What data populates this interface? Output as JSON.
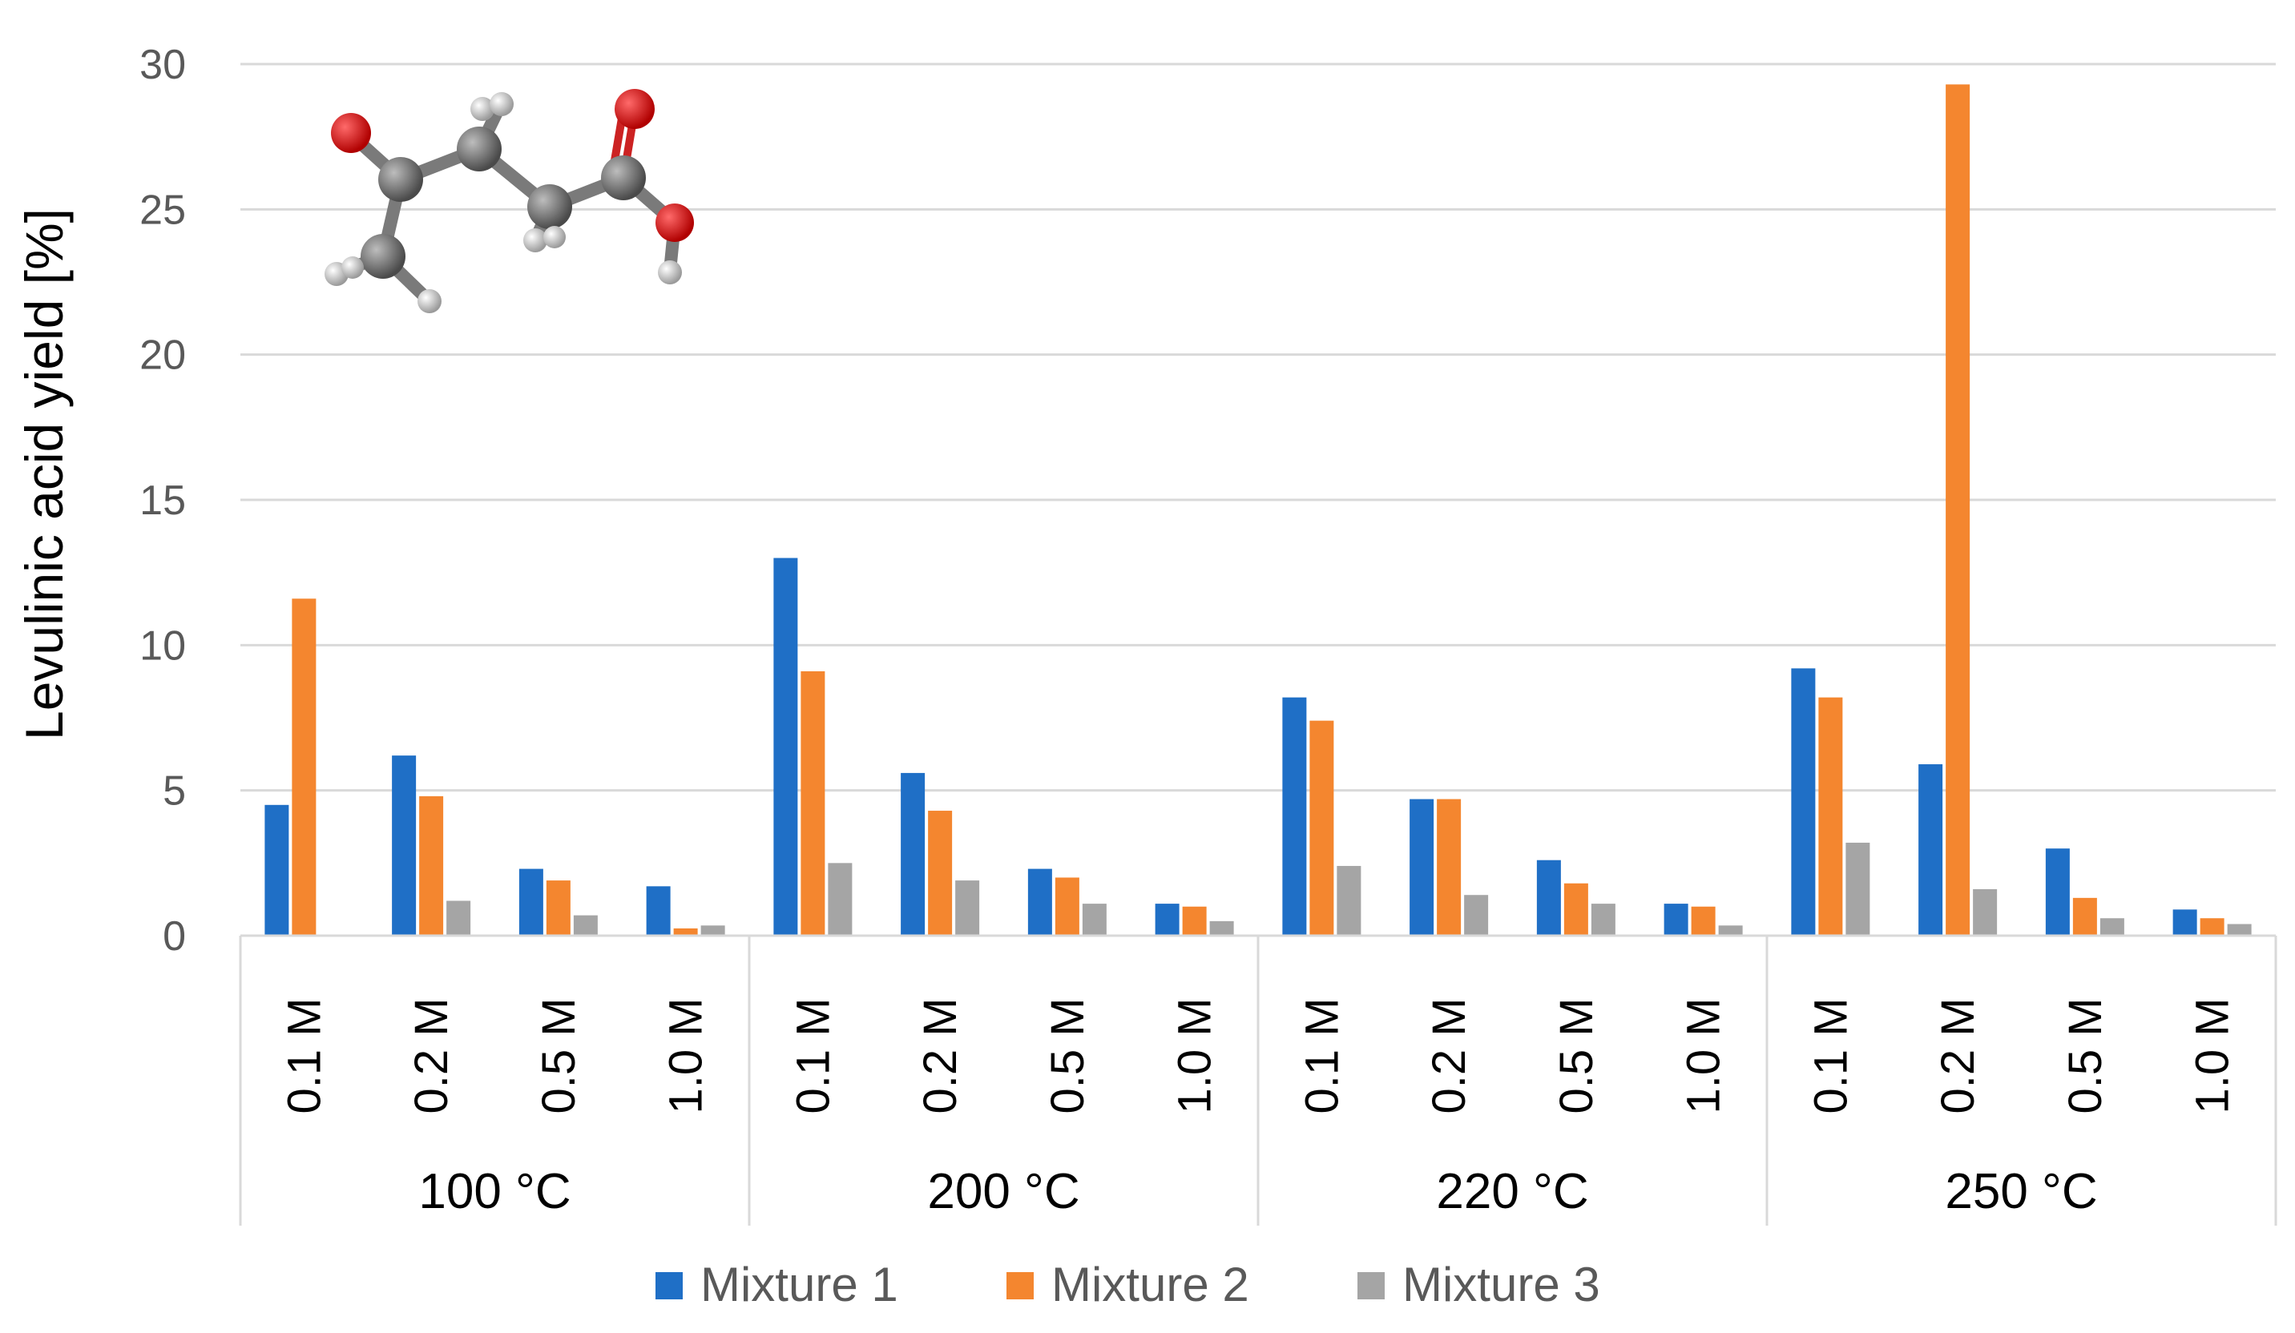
{
  "chart_data": {
    "type": "bar",
    "title": "",
    "ylabel": "Levulinic acid yield [%]",
    "xlabel": "",
    "ylim": [
      0,
      30
    ],
    "yticks": [
      0,
      5,
      10,
      15,
      20,
      25,
      30
    ],
    "grid": true,
    "legend_position": "bottom",
    "groups": [
      {
        "label": "100 °C",
        "categories": [
          "0.1 M",
          "0.2 M",
          "0.5 M",
          "1.0 M"
        ]
      },
      {
        "label": "200 °C",
        "categories": [
          "0.1 M",
          "0.2 M",
          "0.5 M",
          "1.0 M"
        ]
      },
      {
        "label": "220 °C",
        "categories": [
          "0.1 M",
          "0.2 M",
          "0.5 M",
          "1.0 M"
        ]
      },
      {
        "label": "250 °C",
        "categories": [
          "0.1 M",
          "0.2 M",
          "0.5 M",
          "1.0 M"
        ]
      }
    ],
    "series": [
      {
        "name": "Mixture 1",
        "color": "#1f6fc6",
        "values": [
          4.5,
          6.2,
          2.3,
          1.7,
          13.0,
          5.6,
          2.3,
          1.1,
          8.2,
          4.7,
          2.6,
          1.1,
          9.2,
          5.9,
          3.0,
          0.9
        ]
      },
      {
        "name": "Mixture 2",
        "color": "#f4862f",
        "values": [
          11.6,
          4.8,
          1.9,
          0.25,
          9.1,
          4.3,
          2.0,
          1.0,
          7.4,
          4.7,
          1.8,
          1.0,
          8.2,
          29.3,
          1.3,
          0.6
        ]
      },
      {
        "name": "Mixture 3",
        "color": "#a5a5a5",
        "values": [
          0,
          1.2,
          0.7,
          0.35,
          2.5,
          1.9,
          1.1,
          0.5,
          2.4,
          1.4,
          1.1,
          0.35,
          3.2,
          1.6,
          0.6,
          0.4
        ]
      }
    ],
    "annotations": [
      {
        "type": "molecule-image",
        "description": "ball-and-stick model of levulinic acid"
      }
    ]
  }
}
